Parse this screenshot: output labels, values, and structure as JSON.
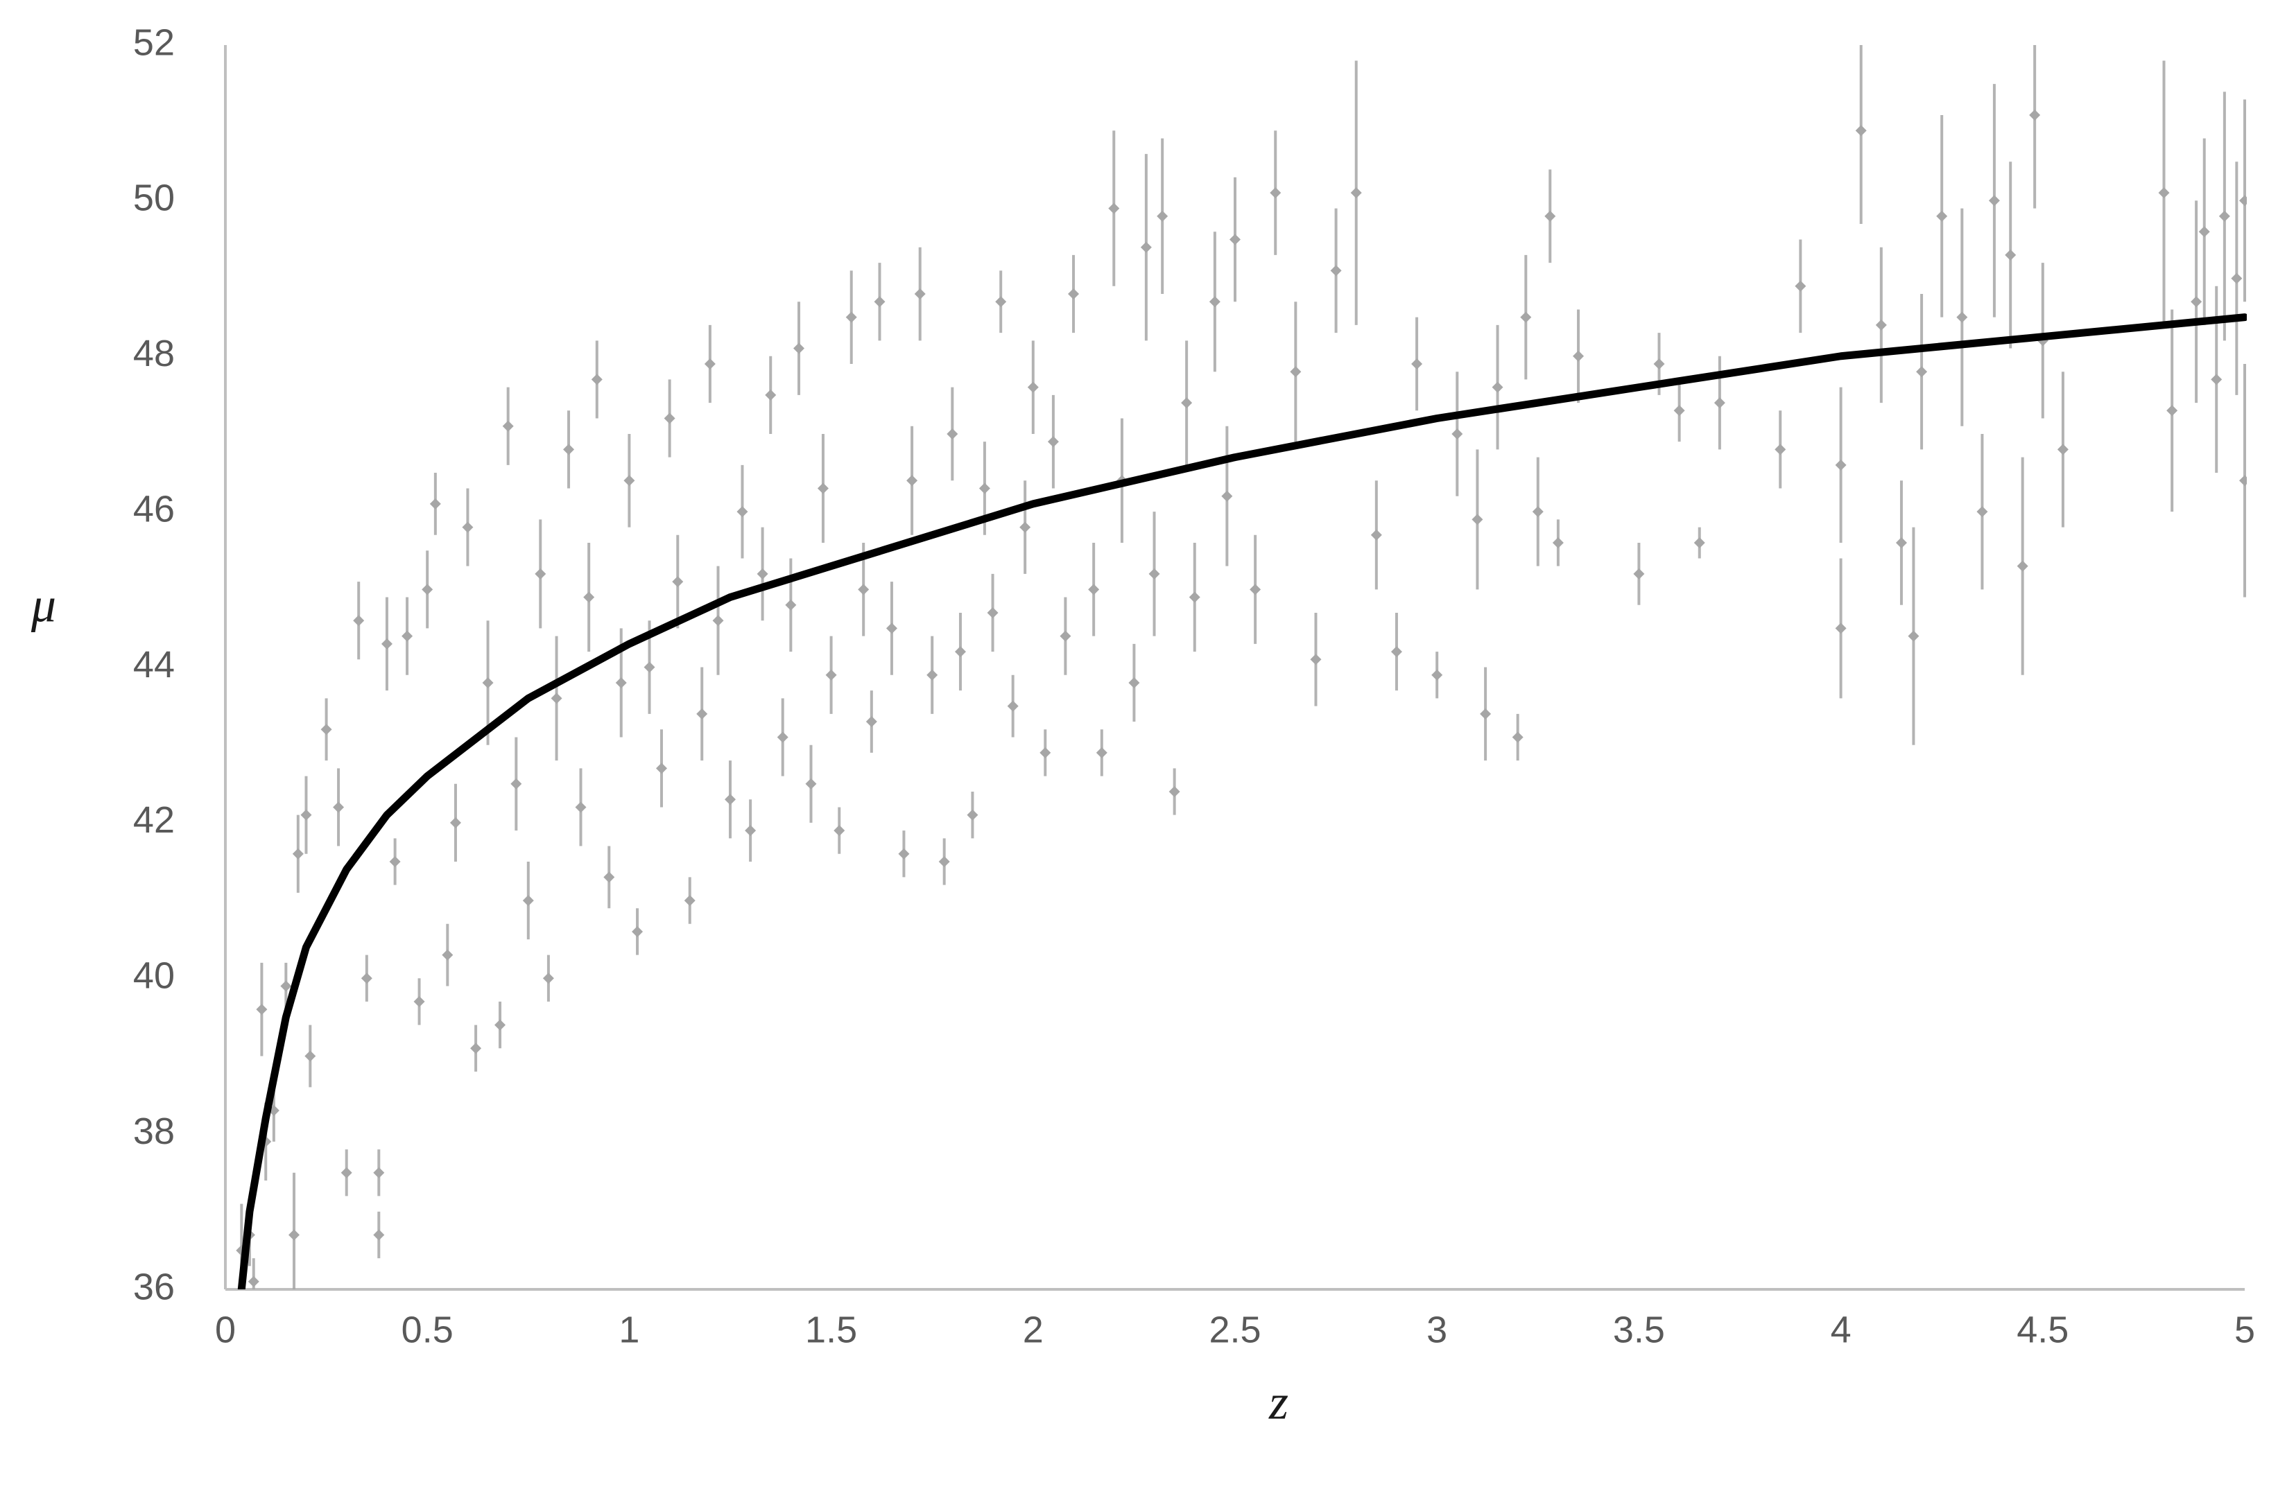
{
  "chart_data": {
    "type": "scatter",
    "xlabel": "z",
    "ylabel": "μ",
    "xlim": [
      0,
      5
    ],
    "ylim": [
      36,
      52
    ],
    "xticks": [
      0,
      0.5,
      1,
      1.5,
      2,
      2.5,
      3,
      3.5,
      4,
      4.5,
      5
    ],
    "yticks": [
      36,
      38,
      40,
      42,
      44,
      46,
      48,
      50,
      52
    ],
    "grid": false,
    "series": [
      {
        "type": "scatter",
        "color": "#a6a6a6",
        "x": [
          0.04,
          0.06,
          0.07,
          0.09,
          0.1,
          0.12,
          0.15,
          0.17,
          0.18,
          0.2,
          0.21,
          0.25,
          0.28,
          0.3,
          0.33,
          0.35,
          0.38,
          0.38,
          0.4,
          0.42,
          0.45,
          0.48,
          0.5,
          0.52,
          0.55,
          0.57,
          0.6,
          0.62,
          0.65,
          0.68,
          0.7,
          0.72,
          0.75,
          0.78,
          0.8,
          0.82,
          0.85,
          0.88,
          0.9,
          0.92,
          0.95,
          0.98,
          1.0,
          1.02,
          1.05,
          1.08,
          1.1,
          1.12,
          1.15,
          1.18,
          1.2,
          1.22,
          1.25,
          1.28,
          1.3,
          1.33,
          1.35,
          1.38,
          1.4,
          1.42,
          1.45,
          1.48,
          1.5,
          1.52,
          1.55,
          1.58,
          1.6,
          1.62,
          1.65,
          1.68,
          1.7,
          1.72,
          1.75,
          1.78,
          1.8,
          1.82,
          1.85,
          1.88,
          1.9,
          1.92,
          1.95,
          1.98,
          2.0,
          2.03,
          2.05,
          2.08,
          2.1,
          2.15,
          2.17,
          2.2,
          2.22,
          2.25,
          2.28,
          2.3,
          2.32,
          2.35,
          2.38,
          2.4,
          2.45,
          2.48,
          2.5,
          2.55,
          2.6,
          2.65,
          2.7,
          2.75,
          2.8,
          2.85,
          2.9,
          2.95,
          3.0,
          3.05,
          3.1,
          3.12,
          3.15,
          3.2,
          3.22,
          3.25,
          3.28,
          3.3,
          3.35,
          3.5,
          3.55,
          3.6,
          3.65,
          3.7,
          3.85,
          3.9,
          4.0,
          4.0,
          4.05,
          4.1,
          4.15,
          4.18,
          4.2,
          4.25,
          4.3,
          4.35,
          4.38,
          4.42,
          4.45,
          4.48,
          4.5,
          4.55,
          4.8,
          4.82,
          4.88,
          4.9,
          4.93,
          4.95,
          4.98,
          5.0,
          5.0
        ],
        "values": [
          36.5,
          36.7,
          36.1,
          39.6,
          37.9,
          38.3,
          39.9,
          36.7,
          41.6,
          42.1,
          39.0,
          43.2,
          42.2,
          37.5,
          44.6,
          40.0,
          36.7,
          37.5,
          44.3,
          41.5,
          44.4,
          39.7,
          45.0,
          46.1,
          40.3,
          42.0,
          45.8,
          39.1,
          43.8,
          39.4,
          47.1,
          42.5,
          41.0,
          45.2,
          40.0,
          43.6,
          46.8,
          42.2,
          44.9,
          47.7,
          41.3,
          43.8,
          46.4,
          40.6,
          44.0,
          42.7,
          47.2,
          45.1,
          41.0,
          43.4,
          47.9,
          44.6,
          42.3,
          46.0,
          41.9,
          45.2,
          47.5,
          43.1,
          44.8,
          48.1,
          42.5,
          46.3,
          43.9,
          41.9,
          48.5,
          45.0,
          43.3,
          48.7,
          44.5,
          41.6,
          46.4,
          48.8,
          43.9,
          41.5,
          47.0,
          44.2,
          42.1,
          46.3,
          44.7,
          48.7,
          43.5,
          45.8,
          47.6,
          42.9,
          46.9,
          44.4,
          48.8,
          45.0,
          42.9,
          49.9,
          46.4,
          43.8,
          49.4,
          45.2,
          49.8,
          42.4,
          47.4,
          44.9,
          48.7,
          46.2,
          49.5,
          45.0,
          50.1,
          47.8,
          44.1,
          49.1,
          50.1,
          45.7,
          44.2,
          47.9,
          43.9,
          47.0,
          45.9,
          43.4,
          47.6,
          43.1,
          48.5,
          46.0,
          49.8,
          45.6,
          48.0,
          45.2,
          47.9,
          47.3,
          45.6,
          47.4,
          46.8,
          48.9,
          44.5,
          46.6,
          50.9,
          48.4,
          45.6,
          44.4,
          47.8,
          49.8,
          48.5,
          46.0,
          50.0,
          49.3,
          45.3,
          51.1,
          48.2,
          46.8,
          50.1,
          47.3,
          48.7,
          49.6,
          47.7,
          49.8,
          49.0,
          50.0,
          46.4
        ],
        "errors": [
          0.6,
          0.4,
          0.3,
          0.6,
          0.5,
          0.4,
          0.3,
          0.8,
          0.5,
          0.5,
          0.4,
          0.4,
          0.5,
          0.3,
          0.5,
          0.3,
          0.3,
          0.3,
          0.6,
          0.3,
          0.5,
          0.3,
          0.5,
          0.4,
          0.4,
          0.5,
          0.5,
          0.3,
          0.8,
          0.3,
          0.5,
          0.6,
          0.5,
          0.7,
          0.3,
          0.8,
          0.5,
          0.5,
          0.7,
          0.5,
          0.4,
          0.7,
          0.6,
          0.3,
          0.6,
          0.5,
          0.5,
          0.6,
          0.3,
          0.6,
          0.5,
          0.7,
          0.5,
          0.6,
          0.4,
          0.6,
          0.5,
          0.5,
          0.6,
          0.6,
          0.5,
          0.7,
          0.5,
          0.3,
          0.6,
          0.6,
          0.4,
          0.5,
          0.6,
          0.3,
          0.7,
          0.6,
          0.5,
          0.3,
          0.6,
          0.5,
          0.3,
          0.6,
          0.5,
          0.4,
          0.4,
          0.6,
          0.6,
          0.3,
          0.6,
          0.5,
          0.5,
          0.6,
          0.3,
          1.0,
          0.8,
          0.5,
          1.2,
          0.8,
          1.0,
          0.3,
          0.8,
          0.7,
          0.9,
          0.9,
          0.8,
          0.7,
          0.8,
          0.9,
          0.6,
          0.8,
          1.7,
          0.7,
          0.5,
          0.6,
          0.3,
          0.8,
          0.9,
          0.6,
          0.8,
          0.3,
          0.8,
          0.7,
          0.6,
          0.3,
          0.6,
          0.4,
          0.4,
          0.4,
          0.2,
          0.6,
          0.5,
          0.6,
          0.9,
          1.0,
          1.2,
          1.0,
          0.8,
          1.4,
          1.0,
          1.3,
          1.4,
          1.0,
          1.5,
          1.2,
          1.4,
          1.2,
          1.0,
          1.0,
          1.7,
          1.3,
          1.3,
          1.2,
          1.2,
          1.6,
          1.5,
          1.3,
          1.5
        ]
      },
      {
        "type": "line",
        "color": "#000000",
        "x": [
          0.04,
          0.06,
          0.08,
          0.1,
          0.15,
          0.2,
          0.3,
          0.4,
          0.5,
          0.75,
          1,
          1.25,
          1.5,
          2,
          2.5,
          3,
          3.5,
          4,
          4.5,
          5
        ],
        "values": [
          36.0,
          37.0,
          37.6,
          38.2,
          39.5,
          40.4,
          41.4,
          42.1,
          42.6,
          43.6,
          44.3,
          44.9,
          45.3,
          46.1,
          46.7,
          47.2,
          47.6,
          48.0,
          48.25,
          48.5
        ]
      }
    ]
  }
}
